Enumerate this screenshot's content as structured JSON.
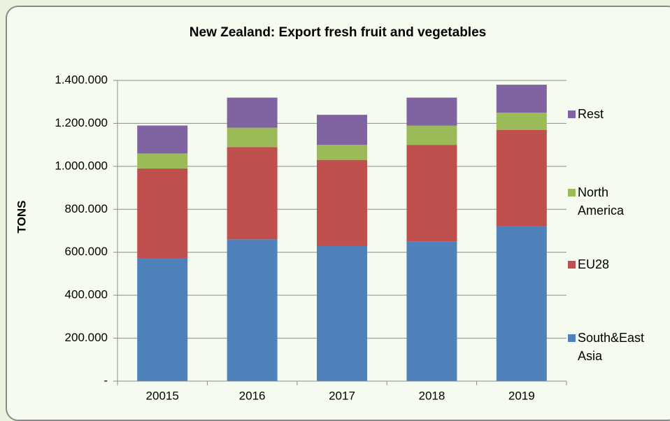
{
  "chart_data": {
    "type": "stacked_bar",
    "title": "New Zealand: Export fresh fruit and vegetables",
    "ylabel": "TONS",
    "categories": [
      "20015",
      "2016",
      "2017",
      "2018",
      "2019"
    ],
    "series": [
      {
        "name": "South&East Asia",
        "color": "#4f81bd",
        "values": [
          570000,
          660000,
          630000,
          650000,
          720000
        ]
      },
      {
        "name": "EU28",
        "color": "#c0504d",
        "values": [
          420000,
          430000,
          400000,
          450000,
          450000
        ]
      },
      {
        "name": "North America",
        "color": "#9bbb59",
        "values": [
          70000,
          90000,
          70000,
          90000,
          80000
        ]
      },
      {
        "name": "Rest",
        "color": "#8064a2",
        "values": [
          130000,
          140000,
          140000,
          130000,
          130000
        ]
      }
    ],
    "ylim": [
      0,
      1400000
    ],
    "yticks": [
      {
        "value": 0,
        "label": "-"
      },
      {
        "value": 200000,
        "label": "200.000"
      },
      {
        "value": 400000,
        "label": "400.000"
      },
      {
        "value": 600000,
        "label": "600.000"
      },
      {
        "value": 800000,
        "label": "800.000"
      },
      {
        "value": 1000000,
        "label": "1.000.000"
      },
      {
        "value": 1200000,
        "label": "1.200.000"
      },
      {
        "value": 1400000,
        "label": "1.400.000"
      }
    ],
    "grid": true,
    "legend": "right"
  }
}
